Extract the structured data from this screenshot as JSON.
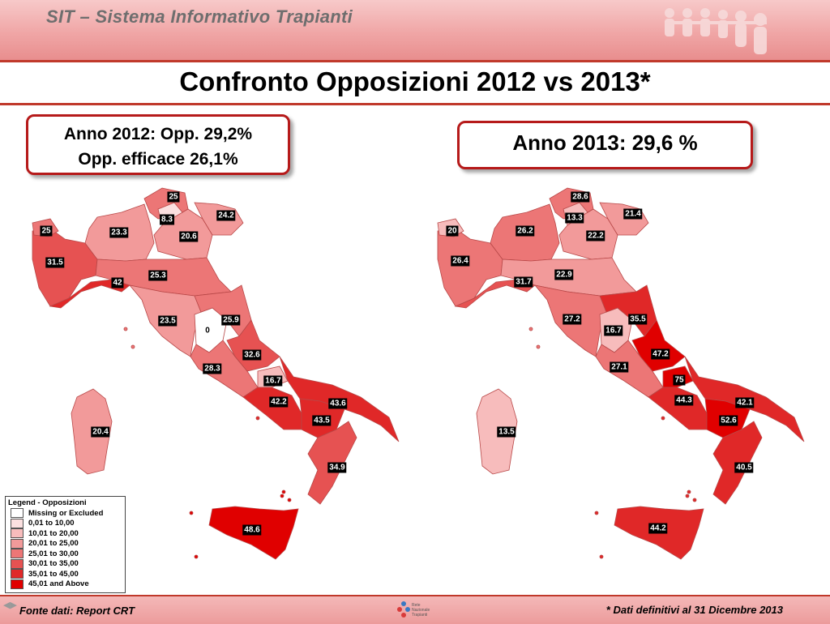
{
  "header": {
    "title": "SIT – Sistema Informativo Trapianti"
  },
  "page": {
    "title": "Confronto Opposizioni 2012 vs 2013*"
  },
  "box_2012": {
    "line1": "Anno 2012:  Opp. 29,2%",
    "line2": "Opp. efficace  26,1%"
  },
  "box_2013": {
    "text": "Anno 2013: 29,6 %"
  },
  "map_2012": {
    "regions": [
      {
        "name": "Trentino Alto Adige",
        "value": "25"
      },
      {
        "name": "Bolzano/Trento",
        "value": "8.3"
      },
      {
        "name": "Friuli Venezia Giulia",
        "value": "24.2"
      },
      {
        "name": "Valle d'Aosta",
        "value": "25"
      },
      {
        "name": "Lombardia",
        "value": "23.3"
      },
      {
        "name": "Veneto",
        "value": "20.6"
      },
      {
        "name": "Piemonte",
        "value": "31.5"
      },
      {
        "name": "Liguria",
        "value": "42"
      },
      {
        "name": "Emilia Romagna",
        "value": "25.3"
      },
      {
        "name": "Toscana",
        "value": "23.5"
      },
      {
        "name": "Umbria",
        "value": "0"
      },
      {
        "name": "Marche",
        "value": "25.9"
      },
      {
        "name": "Abruzzo",
        "value": "32.6"
      },
      {
        "name": "Lazio",
        "value": "28.3"
      },
      {
        "name": "Molise",
        "value": "16.7"
      },
      {
        "name": "Campania",
        "value": "42.2"
      },
      {
        "name": "Puglia",
        "value": "43.6"
      },
      {
        "name": "Basilicata",
        "value": "43.5"
      },
      {
        "name": "Calabria",
        "value": "34.9"
      },
      {
        "name": "Sicilia",
        "value": "48.6"
      },
      {
        "name": "Sardegna",
        "value": "20.4"
      }
    ]
  },
  "map_2013": {
    "regions": [
      {
        "name": "Trentino Alto Adige",
        "value": "28.6"
      },
      {
        "name": "Bolzano/Trento",
        "value": "13.3"
      },
      {
        "name": "Friuli Venezia Giulia",
        "value": "21.4"
      },
      {
        "name": "Valle d'Aosta",
        "value": "20"
      },
      {
        "name": "Lombardia",
        "value": "26.2"
      },
      {
        "name": "Veneto",
        "value": "22.2"
      },
      {
        "name": "Piemonte",
        "value": "26.4"
      },
      {
        "name": "Liguria",
        "value": "31.7"
      },
      {
        "name": "Emilia Romagna",
        "value": "22.9"
      },
      {
        "name": "Toscana",
        "value": "27.2"
      },
      {
        "name": "Umbria",
        "value": "16.7"
      },
      {
        "name": "Marche",
        "value": "35.5"
      },
      {
        "name": "Abruzzo",
        "value": "47.2"
      },
      {
        "name": "Lazio",
        "value": "27.1"
      },
      {
        "name": "Molise",
        "value": "75"
      },
      {
        "name": "Campania",
        "value": "44.3"
      },
      {
        "name": "Puglia",
        "value": "42.1"
      },
      {
        "name": "Basilicata",
        "value": "52.6"
      },
      {
        "name": "Calabria",
        "value": "40.5"
      },
      {
        "name": "Sicilia",
        "value": "44.2"
      },
      {
        "name": "Sardegna",
        "value": "13.5"
      }
    ]
  },
  "legend": {
    "title": "Legend - Opposizioni",
    "items": [
      {
        "label": "Missing or Excluded",
        "color": "#ffffff"
      },
      {
        "label": "0,01 to 10,00",
        "color": "#fbe0e0"
      },
      {
        "label": "10,01 to 20,00",
        "color": "#f7bcbc"
      },
      {
        "label": "20,01 to 25,00",
        "color": "#f29a9a"
      },
      {
        "label": "25,01 to 30,00",
        "color": "#ec7676"
      },
      {
        "label": "30,01 to 35,00",
        "color": "#e65252"
      },
      {
        "label": "35,01 to 45,00",
        "color": "#e02828"
      },
      {
        "label": "45,01 and Above",
        "color": "#e00000"
      }
    ]
  },
  "footer": {
    "source": "Fonte dati: Report CRT",
    "note": "* Dati  definitivi al 31 Dicembre 2013",
    "logo_text": [
      "Rete",
      "Nazionale",
      "Trapianti"
    ]
  }
}
